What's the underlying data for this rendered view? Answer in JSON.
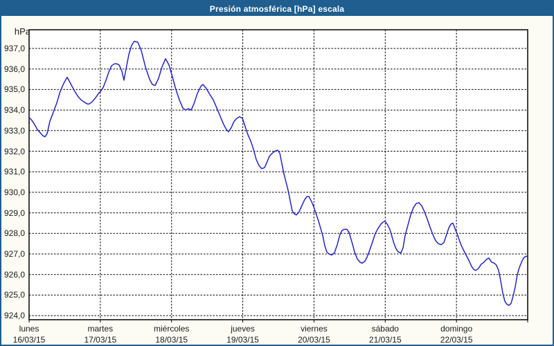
{
  "window": {
    "title": "Presión atmosférica [hPa] escala"
  },
  "colors": {
    "titlebar_bg": "#1F5E8F",
    "window_border": "#1F5E8F",
    "page_bg": "#FCFCF4",
    "plot_bg": "#FFFFFF",
    "plot_border": "#000000",
    "grid": "#000000",
    "line": "#2222CC",
    "text": "#1A1A1A",
    "title_text": "#FFFFFF"
  },
  "y_axis": {
    "unit_label": "hPa",
    "tick_labels": [
      "937,0",
      "936,0",
      "935,0",
      "934,0",
      "933,0",
      "932,0",
      "931,0",
      "930,0",
      "929,0",
      "928,0",
      "927,0",
      "926,0",
      "925,0",
      "924,0"
    ],
    "tick_values": [
      937,
      936,
      935,
      934,
      933,
      932,
      931,
      930,
      929,
      928,
      927,
      926,
      925,
      924
    ]
  },
  "x_axis": {
    "days": [
      {
        "name": "lunes",
        "date": "16/03/15"
      },
      {
        "name": "martes",
        "date": "17/03/15"
      },
      {
        "name": "miércoles",
        "date": "18/03/15"
      },
      {
        "name": "jueves",
        "date": "19/03/15"
      },
      {
        "name": "viernes",
        "date": "20/03/15"
      },
      {
        "name": "sábado",
        "date": "21/03/15"
      },
      {
        "name": "domingo",
        "date": "22/03/15"
      }
    ]
  },
  "chart_data": {
    "type": "line",
    "title": "Presión atmosférica [hPa] escala",
    "ylabel": "hPa",
    "x_unit": "days from lunes 16/03/15 (0 = start of lunes, 7 = end of domingo)",
    "xlim": [
      0,
      7
    ],
    "ylim": [
      923.8,
      937.9
    ],
    "y_gridlines": [
      924,
      925,
      926,
      927,
      928,
      929,
      930,
      931,
      932,
      933,
      934,
      935,
      936,
      937
    ],
    "x_gridline_days": [
      1,
      2,
      3,
      4,
      5,
      6
    ],
    "grid": "dashed",
    "legend_position": "none",
    "series": [
      {
        "name": "Presión atmosférica",
        "color": "#2222CC",
        "points": [
          [
            0.0,
            933.65
          ],
          [
            0.039,
            933.5
          ],
          [
            0.078,
            933.3
          ],
          [
            0.117,
            933.05
          ],
          [
            0.156,
            932.9
          ],
          [
            0.194,
            932.75
          ],
          [
            0.224,
            932.7
          ],
          [
            0.253,
            932.85
          ],
          [
            0.292,
            933.45
          ],
          [
            0.34,
            933.9
          ],
          [
            0.389,
            934.35
          ],
          [
            0.437,
            934.9
          ],
          [
            0.486,
            935.3
          ],
          [
            0.535,
            935.6
          ],
          [
            0.574,
            935.35
          ],
          [
            0.612,
            935.1
          ],
          [
            0.651,
            934.85
          ],
          [
            0.69,
            934.65
          ],
          [
            0.729,
            934.5
          ],
          [
            0.768,
            934.4
          ],
          [
            0.817,
            934.3
          ],
          [
            0.846,
            934.3
          ],
          [
            0.885,
            934.4
          ],
          [
            0.933,
            934.6
          ],
          [
            0.972,
            934.8
          ],
          [
            1.001,
            934.9
          ],
          [
            1.04,
            935.1
          ],
          [
            1.079,
            935.45
          ],
          [
            1.118,
            935.85
          ],
          [
            1.157,
            936.15
          ],
          [
            1.196,
            936.25
          ],
          [
            1.235,
            936.25
          ],
          [
            1.264,
            936.2
          ],
          [
            1.303,
            935.9
          ],
          [
            1.332,
            935.45
          ],
          [
            1.361,
            936.0
          ],
          [
            1.4,
            936.7
          ],
          [
            1.439,
            937.15
          ],
          [
            1.478,
            937.35
          ],
          [
            1.527,
            937.3
          ],
          [
            1.575,
            936.9
          ],
          [
            1.633,
            936.1
          ],
          [
            1.692,
            935.5
          ],
          [
            1.731,
            935.25
          ],
          [
            1.77,
            935.2
          ],
          [
            1.818,
            935.55
          ],
          [
            1.867,
            936.1
          ],
          [
            1.915,
            936.5
          ],
          [
            1.964,
            936.2
          ],
          [
            2.013,
            935.6
          ],
          [
            2.061,
            935.0
          ],
          [
            2.11,
            934.5
          ],
          [
            2.158,
            934.1
          ],
          [
            2.197,
            934.0
          ],
          [
            2.236,
            934.07
          ],
          [
            2.275,
            934.0
          ],
          [
            2.314,
            934.3
          ],
          [
            2.362,
            934.8
          ],
          [
            2.411,
            935.15
          ],
          [
            2.44,
            935.25
          ],
          [
            2.489,
            935.05
          ],
          [
            2.538,
            934.75
          ],
          [
            2.586,
            934.5
          ],
          [
            2.635,
            934.1
          ],
          [
            2.683,
            933.7
          ],
          [
            2.732,
            933.3
          ],
          [
            2.771,
            933.05
          ],
          [
            2.8,
            932.95
          ],
          [
            2.839,
            933.15
          ],
          [
            2.878,
            933.45
          ],
          [
            2.917,
            933.6
          ],
          [
            2.956,
            933.68
          ],
          [
            2.995,
            933.6
          ],
          [
            3.033,
            933.2
          ],
          [
            3.072,
            932.8
          ],
          [
            3.111,
            932.5
          ],
          [
            3.15,
            932.1
          ],
          [
            3.189,
            931.6
          ],
          [
            3.228,
            931.3
          ],
          [
            3.267,
            931.15
          ],
          [
            3.306,
            931.2
          ],
          [
            3.344,
            931.5
          ],
          [
            3.374,
            931.75
          ],
          [
            3.413,
            931.9
          ],
          [
            3.451,
            932.0
          ],
          [
            3.49,
            932.05
          ],
          [
            3.52,
            931.9
          ],
          [
            3.549,
            931.4
          ],
          [
            3.578,
            930.9
          ],
          [
            3.607,
            930.5
          ],
          [
            3.636,
            930.1
          ],
          [
            3.665,
            929.6
          ],
          [
            3.694,
            929.1
          ],
          [
            3.723,
            928.95
          ],
          [
            3.753,
            928.9
          ],
          [
            3.791,
            929.05
          ],
          [
            3.83,
            929.35
          ],
          [
            3.869,
            929.65
          ],
          [
            3.898,
            929.78
          ],
          [
            3.928,
            929.8
          ],
          [
            3.966,
            929.55
          ],
          [
            3.996,
            929.3
          ],
          [
            4.025,
            929.0
          ],
          [
            4.064,
            928.6
          ],
          [
            4.093,
            928.25
          ],
          [
            4.122,
            927.9
          ],
          [
            4.151,
            927.4
          ],
          [
            4.18,
            927.1
          ],
          [
            4.21,
            927.0
          ],
          [
            4.249,
            926.95
          ],
          [
            4.287,
            927.05
          ],
          [
            4.326,
            927.45
          ],
          [
            4.365,
            927.95
          ],
          [
            4.395,
            928.15
          ],
          [
            4.424,
            928.2
          ],
          [
            4.463,
            928.2
          ],
          [
            4.492,
            928.05
          ],
          [
            4.531,
            927.6
          ],
          [
            4.569,
            927.1
          ],
          [
            4.608,
            926.75
          ],
          [
            4.647,
            926.6
          ],
          [
            4.676,
            926.55
          ],
          [
            4.715,
            926.65
          ],
          [
            4.745,
            926.85
          ],
          [
            4.783,
            927.2
          ],
          [
            4.822,
            927.6
          ],
          [
            4.861,
            928.0
          ],
          [
            4.9,
            928.25
          ],
          [
            4.939,
            928.45
          ],
          [
            4.968,
            928.55
          ],
          [
            4.997,
            928.6
          ],
          [
            5.036,
            928.4
          ],
          [
            5.065,
            928.2
          ],
          [
            5.094,
            927.85
          ],
          [
            5.124,
            927.5
          ],
          [
            5.153,
            927.25
          ],
          [
            5.182,
            927.1
          ],
          [
            5.221,
            927.05
          ],
          [
            5.25,
            927.3
          ],
          [
            5.279,
            927.9
          ],
          [
            5.318,
            928.4
          ],
          [
            5.357,
            928.9
          ],
          [
            5.396,
            929.25
          ],
          [
            5.434,
            929.45
          ],
          [
            5.473,
            929.5
          ],
          [
            5.512,
            929.35
          ],
          [
            5.551,
            929.05
          ],
          [
            5.59,
            928.7
          ],
          [
            5.629,
            928.3
          ],
          [
            5.668,
            927.95
          ],
          [
            5.707,
            927.65
          ],
          [
            5.746,
            927.5
          ],
          [
            5.784,
            927.45
          ],
          [
            5.823,
            927.55
          ],
          [
            5.853,
            927.85
          ],
          [
            5.891,
            928.25
          ],
          [
            5.921,
            928.45
          ],
          [
            5.95,
            928.5
          ],
          [
            5.989,
            928.15
          ],
          [
            6.018,
            927.9
          ],
          [
            6.047,
            927.6
          ],
          [
            6.076,
            927.35
          ],
          [
            6.105,
            927.15
          ],
          [
            6.135,
            926.95
          ],
          [
            6.173,
            926.7
          ],
          [
            6.212,
            926.4
          ],
          [
            6.242,
            926.25
          ],
          [
            6.271,
            926.2
          ],
          [
            6.31,
            926.3
          ],
          [
            6.348,
            926.5
          ],
          [
            6.387,
            926.6
          ],
          [
            6.426,
            926.75
          ],
          [
            6.456,
            926.8
          ],
          [
            6.494,
            926.6
          ],
          [
            6.533,
            926.55
          ],
          [
            6.562,
            926.45
          ],
          [
            6.592,
            926.2
          ],
          [
            6.621,
            925.7
          ],
          [
            6.65,
            925.1
          ],
          [
            6.679,
            924.7
          ],
          [
            6.708,
            924.55
          ],
          [
            6.738,
            924.5
          ],
          [
            6.767,
            924.6
          ],
          [
            6.796,
            924.95
          ],
          [
            6.825,
            925.4
          ],
          [
            6.854,
            926.0
          ],
          [
            6.884,
            926.35
          ],
          [
            6.913,
            926.6
          ],
          [
            6.942,
            926.8
          ],
          [
            6.971,
            926.88
          ],
          [
            7.0,
            926.9
          ]
        ]
      }
    ]
  }
}
